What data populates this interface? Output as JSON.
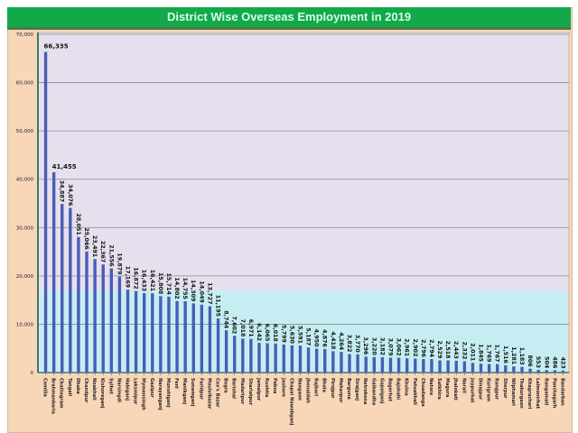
{
  "chart_data": {
    "type": "bar",
    "title": "District Wise Overseas Employment  in 2019",
    "xlabel": "",
    "ylabel": "",
    "ylim": [
      0,
      70000
    ],
    "yticks": [
      "0",
      "10,000",
      "20,000",
      "30,000",
      "40,000",
      "50,000",
      "60,000",
      "70,000"
    ],
    "grid": true,
    "legend": "none",
    "colors": {
      "bar": "#4a5cb5",
      "plot_bg": "#e6e0ee",
      "frame_bg": "#f8d6b8",
      "title_bg": "#13a84a",
      "title_text": "#d4ffe9"
    },
    "categories": [
      "Comilla",
      "Brahmanbaria",
      "Chattogram",
      "Tangail",
      "Dhaka",
      "Chandpur",
      "Noakhali",
      "Kishoreganj",
      "Sylhet",
      "Narsingdi",
      "Habiganj",
      "Laksmipur",
      "Mymensingh",
      "Gazipur",
      "Narayanganj",
      "Munshiganj",
      "Feni",
      "Manikganj",
      "Sunamganj",
      "Faridpur",
      "Moulvibazar",
      "Cox's Bazar",
      "Bogra",
      "Barishal",
      "Madaripur",
      "Shariatpur",
      "Jamalpur",
      "Kushtia",
      "Pabna",
      "Jashore",
      "Chapai Nawabganj",
      "Naogaon",
      "Jhenaidah",
      "Rajbari",
      "Bhola",
      "Pirojpur",
      "Meherpur",
      "Barguna",
      "Sirajganj",
      "Netrokona",
      "Gaibandha",
      "Gopalganj",
      "Bagerhat",
      "Rajshahi",
      "Khulna",
      "Patuakhali",
      "Chuadanga",
      "Natore",
      "Satkhira",
      "Magura",
      "Jhalokati",
      "Narail",
      "Joypurhat",
      "Dinajpur",
      "Kurigram",
      "Rangpur",
      "Sherpur",
      "Nilphamari",
      "Thakurgaon",
      "Khagrachari",
      "Lalmonirhat",
      "Rangamati",
      "Panchagarh",
      "Bandarban"
    ],
    "values": [
      66335,
      41455,
      34887,
      34076,
      28051,
      25066,
      23491,
      22367,
      21556,
      19879,
      17169,
      16872,
      16433,
      16421,
      15808,
      15714,
      14802,
      14755,
      14309,
      14049,
      13727,
      11195,
      8744,
      7602,
      7018,
      6971,
      6142,
      6065,
      6018,
      5799,
      5630,
      5591,
      5187,
      4950,
      4876,
      4418,
      4264,
      3822,
      3770,
      3296,
      3220,
      3182,
      3079,
      3062,
      2961,
      2902,
      2796,
      2794,
      2529,
      2518,
      2443,
      2332,
      2011,
      1845,
      1769,
      1767,
      1516,
      1281,
      1183,
      806,
      553,
      504,
      486,
      423
    ],
    "data_labels": [
      "66,335",
      "41,455",
      "34,887",
      "34,076",
      "28,051",
      "25,066",
      "23,491",
      "22,367",
      "21,556",
      "19,879",
      "17,169",
      "16,872",
      "16,433",
      "16,421",
      "15,808",
      "15,714",
      "14,802",
      "14,755",
      "14,309",
      "14,049",
      "13,727",
      "11,195",
      "8,744",
      "7,602",
      "7,018",
      "6,971",
      "6,142",
      "6,065",
      "6,018",
      "5,799",
      "5,630",
      "5,591",
      "5,187",
      "4,950",
      "4,876",
      "4,418",
      "4,264",
      "3,822",
      "3,770",
      "3,296",
      "3,220",
      "3,182",
      "3,079",
      "3,062",
      "2,961",
      "2,902",
      "2,796",
      "2,794",
      "2,529",
      "2,518",
      "2,443",
      "2,332",
      "2,011",
      "1,845",
      "1,769",
      "1,767",
      "1,516",
      "1,281",
      "1,183",
      "806",
      "553",
      "504",
      "486",
      "423"
    ]
  }
}
